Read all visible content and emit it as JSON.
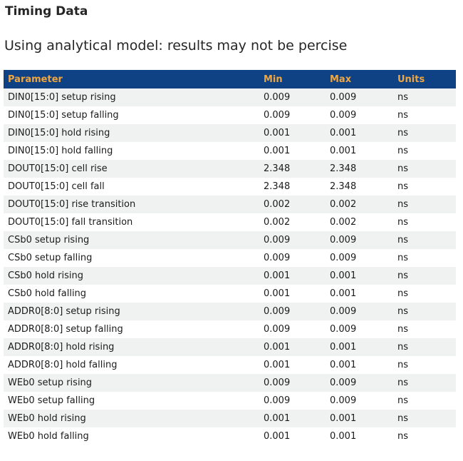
{
  "page": {
    "title": "Timing Data",
    "subtitle": "Using analytical model: results may not be percise"
  },
  "table": {
    "columns": [
      "Parameter",
      "Min",
      "Max",
      "Units"
    ],
    "rows": [
      {
        "parameter": "DIN0[15:0] setup rising",
        "min": "0.009",
        "max": "0.009",
        "units": "ns"
      },
      {
        "parameter": "DIN0[15:0] setup falling",
        "min": "0.009",
        "max": "0.009",
        "units": "ns"
      },
      {
        "parameter": "DIN0[15:0] hold rising",
        "min": "0.001",
        "max": "0.001",
        "units": "ns"
      },
      {
        "parameter": "DIN0[15:0] hold falling",
        "min": "0.001",
        "max": "0.001",
        "units": "ns"
      },
      {
        "parameter": "DOUT0[15:0] cell rise",
        "min": "2.348",
        "max": "2.348",
        "units": "ns"
      },
      {
        "parameter": "DOUT0[15:0] cell fall",
        "min": "2.348",
        "max": "2.348",
        "units": "ns"
      },
      {
        "parameter": "DOUT0[15:0] rise transition",
        "min": "0.002",
        "max": "0.002",
        "units": "ns"
      },
      {
        "parameter": "DOUT0[15:0] fall transition",
        "min": "0.002",
        "max": "0.002",
        "units": "ns"
      },
      {
        "parameter": "CSb0 setup rising",
        "min": "0.009",
        "max": "0.009",
        "units": "ns"
      },
      {
        "parameter": "CSb0 setup falling",
        "min": "0.009",
        "max": "0.009",
        "units": "ns"
      },
      {
        "parameter": "CSb0 hold rising",
        "min": "0.001",
        "max": "0.001",
        "units": "ns"
      },
      {
        "parameter": "CSb0 hold falling",
        "min": "0.001",
        "max": "0.001",
        "units": "ns"
      },
      {
        "parameter": "ADDR0[8:0] setup rising",
        "min": "0.009",
        "max": "0.009",
        "units": "ns"
      },
      {
        "parameter": "ADDR0[8:0] setup falling",
        "min": "0.009",
        "max": "0.009",
        "units": "ns"
      },
      {
        "parameter": "ADDR0[8:0] hold rising",
        "min": "0.001",
        "max": "0.001",
        "units": "ns"
      },
      {
        "parameter": "ADDR0[8:0] hold falling",
        "min": "0.001",
        "max": "0.001",
        "units": "ns"
      },
      {
        "parameter": "WEb0 setup rising",
        "min": "0.009",
        "max": "0.009",
        "units": "ns"
      },
      {
        "parameter": "WEb0 setup falling",
        "min": "0.009",
        "max": "0.009",
        "units": "ns"
      },
      {
        "parameter": "WEb0 hold rising",
        "min": "0.001",
        "max": "0.001",
        "units": "ns"
      },
      {
        "parameter": "WEb0 hold falling",
        "min": "0.001",
        "max": "0.001",
        "units": "ns"
      }
    ]
  },
  "colors": {
    "table_header_bg": "#0e4284",
    "table_header_text": "#f0a640",
    "row_stripe": "#f0f1f1",
    "body_text": "#1b1b1b"
  }
}
